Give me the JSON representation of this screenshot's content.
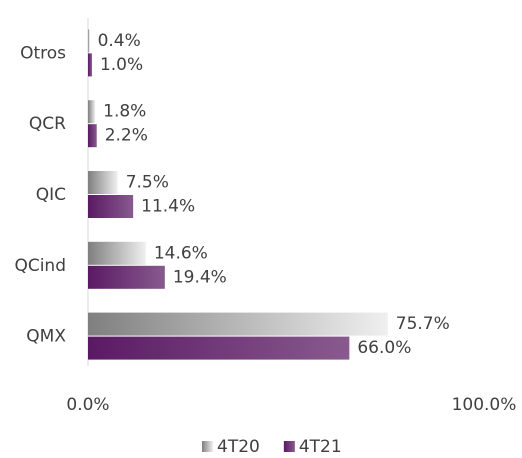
{
  "chart_data": {
    "type": "bar",
    "orientation": "horizontal",
    "categories": [
      "Otros",
      "QCR",
      "QIC",
      "QCind",
      "QMX"
    ],
    "series": [
      {
        "name": "4T20",
        "color": "#7f7f7f",
        "values": [
          0.4,
          1.8,
          7.5,
          14.6,
          75.7
        ],
        "value_labels": [
          "0.4%",
          "1.8%",
          "7.5%",
          "14.6%",
          "75.7%"
        ]
      },
      {
        "name": "4T21",
        "color": "#5a1a63",
        "values": [
          1.0,
          2.2,
          11.4,
          19.4,
          66.0
        ],
        "value_labels": [
          "1.0%",
          "2.2%",
          "11.4%",
          "19.4%",
          "66.0%"
        ]
      }
    ],
    "xlim": [
      0,
      100
    ],
    "xticks": [
      {
        "value": 0,
        "label": "0.0%"
      },
      {
        "value": 100,
        "label": "100.0%"
      }
    ],
    "legend": "bottom"
  }
}
